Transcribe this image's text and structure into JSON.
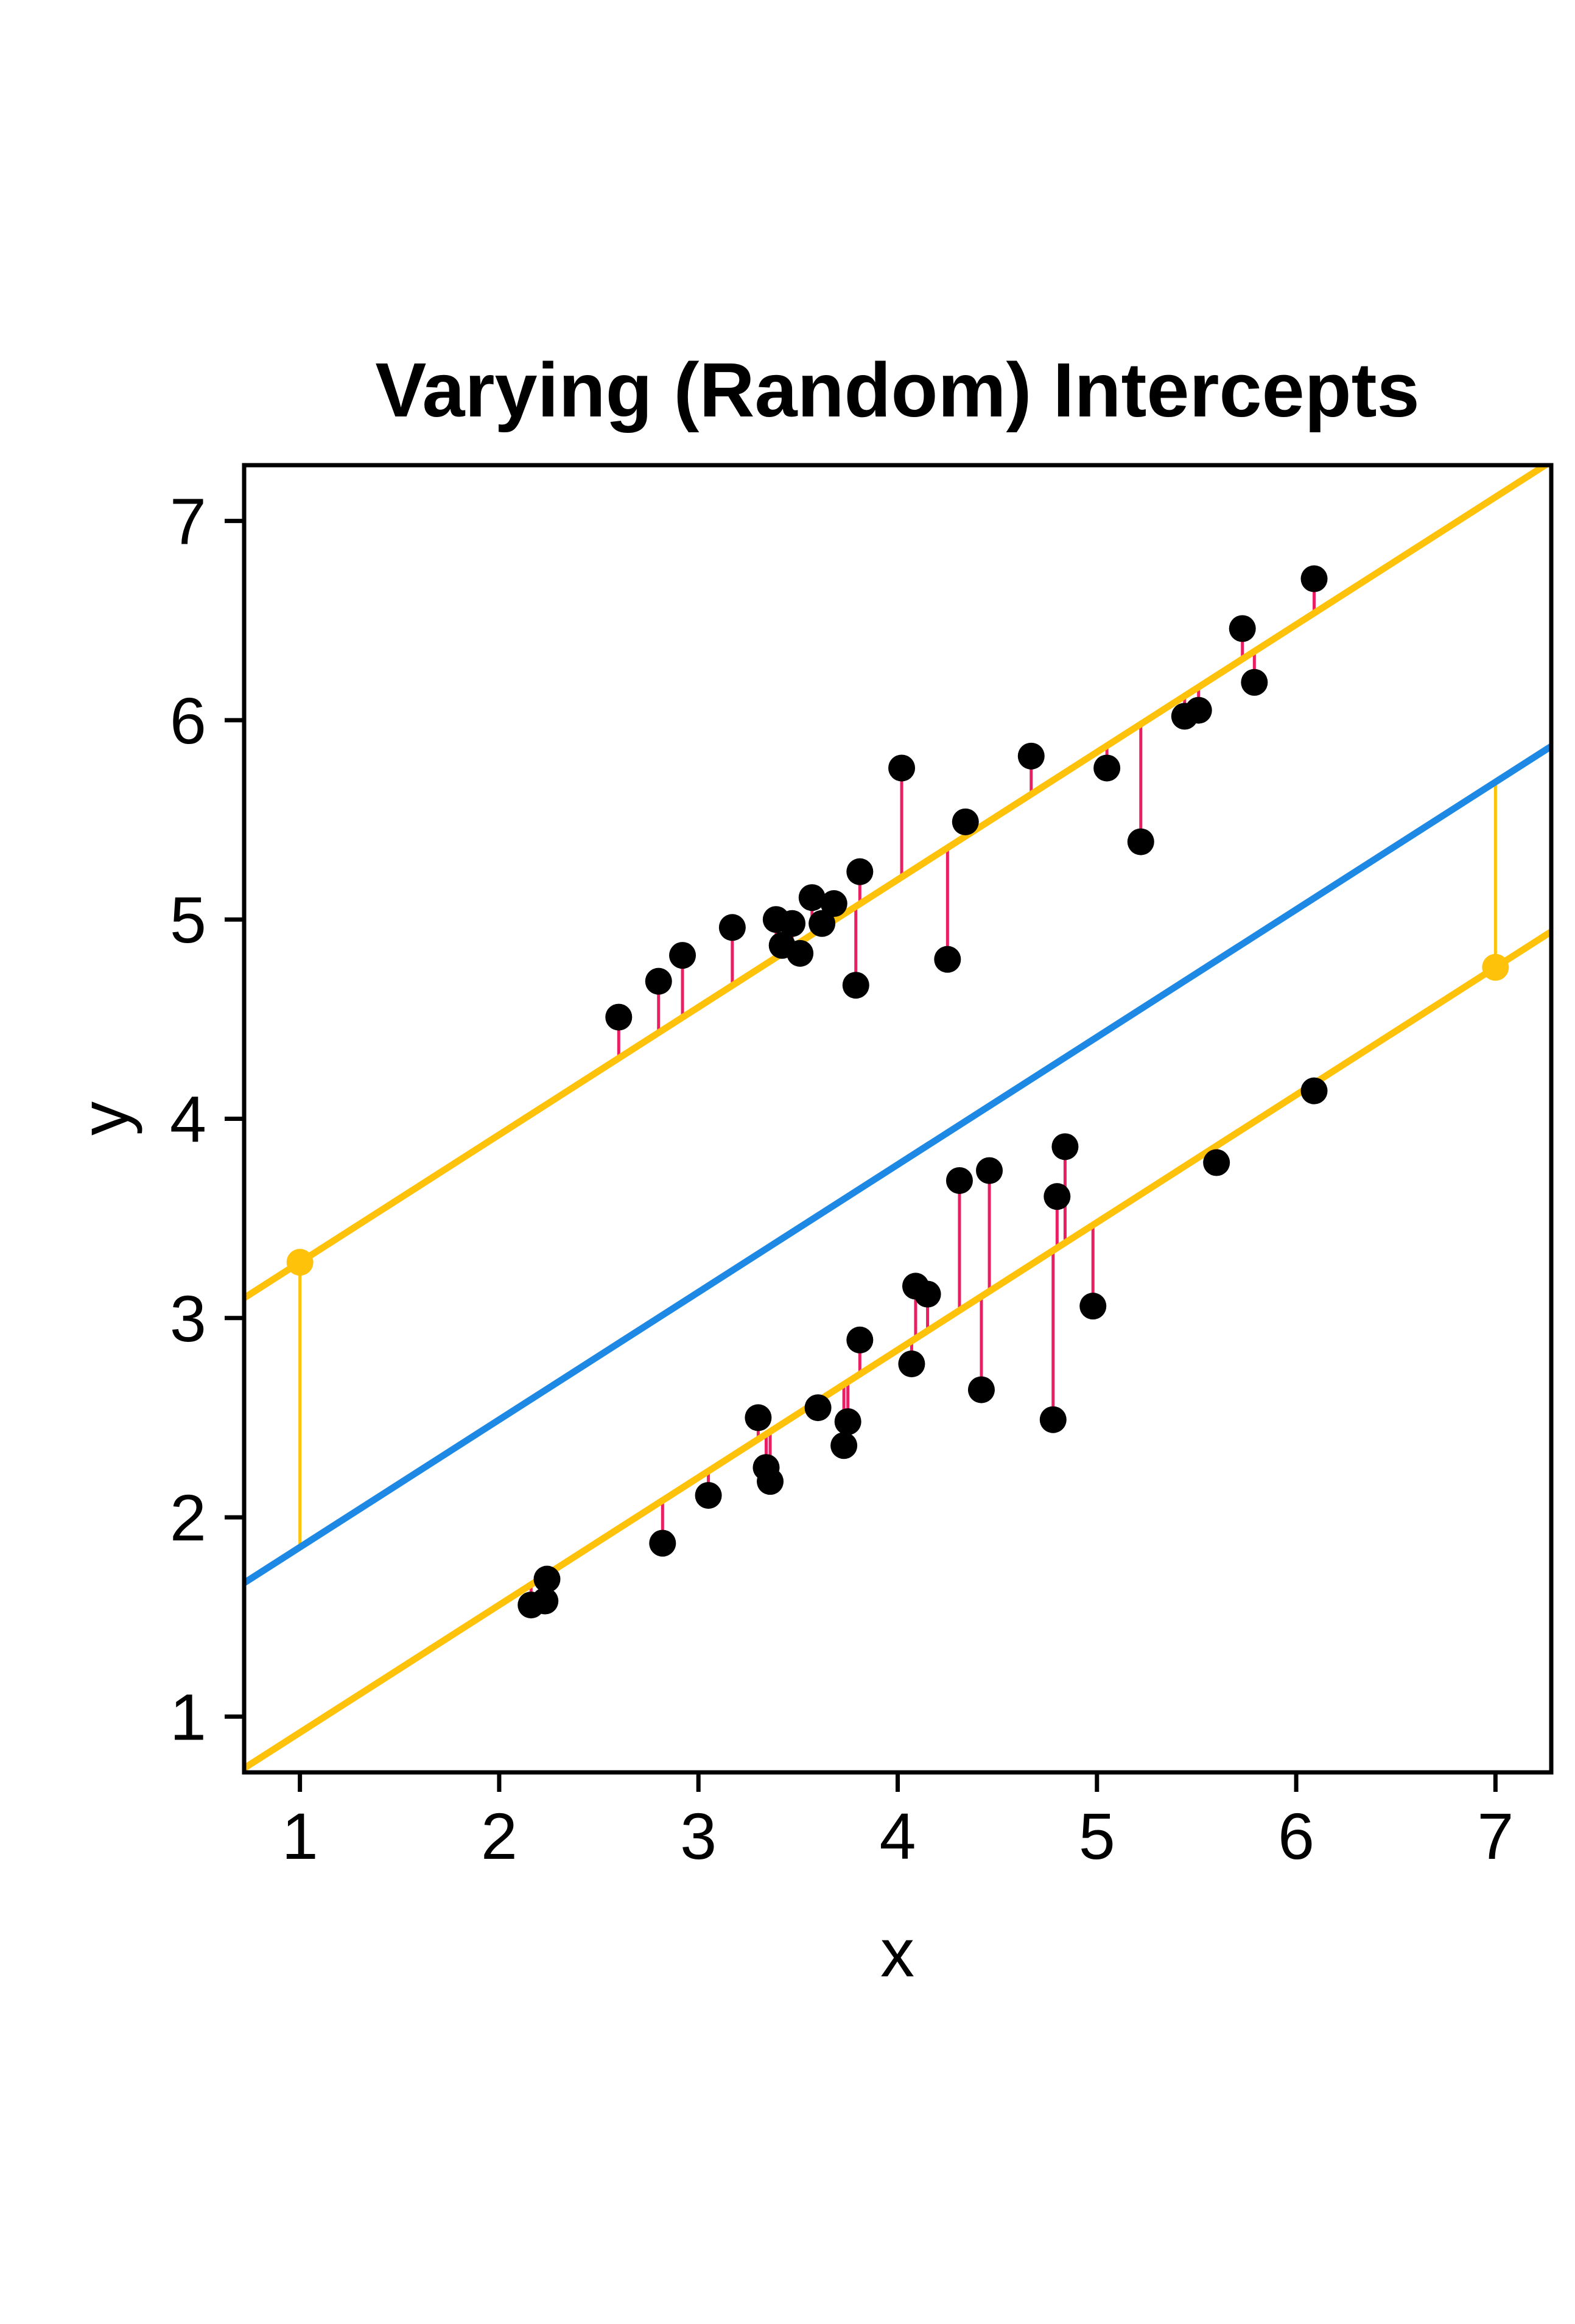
{
  "chart_data": {
    "type": "scatter",
    "title": "Varying (Random) Intercepts",
    "xlabel": "x",
    "ylabel": "y",
    "xlim": [
      0.72,
      7.28
    ],
    "ylim": [
      0.72,
      7.28
    ],
    "xticks": [
      1,
      2,
      3,
      4,
      5,
      6,
      7
    ],
    "yticks": [
      1,
      2,
      3,
      4,
      5,
      6,
      7
    ],
    "grid": false,
    "legend": "none",
    "colors": {
      "points": "#000000",
      "group_lines": "#FFC20A",
      "population_line": "#1E88E5",
      "residuals": "#E91E63",
      "intercept_offsets": "#FFC20A"
    },
    "population_line": {
      "intercept": 1.21,
      "slope": 0.64
    },
    "group_lines": [
      {
        "intercept": 2.64,
        "slope": 0.64
      },
      {
        "intercept": 0.28,
        "slope": 0.64
      }
    ],
    "intercept_markers": [
      {
        "x": 1,
        "y": 3.28,
        "group": 0
      },
      {
        "x": 7,
        "y": 4.76,
        "group": 1
      }
    ],
    "series": [
      {
        "group": 0,
        "points": [
          [
            2.6,
            4.51
          ],
          [
            2.8,
            4.69
          ],
          [
            2.92,
            4.82
          ],
          [
            3.17,
            4.96
          ],
          [
            3.39,
            5.0
          ],
          [
            3.42,
            4.87
          ],
          [
            3.47,
            4.98
          ],
          [
            3.51,
            4.83
          ],
          [
            3.57,
            5.11
          ],
          [
            3.62,
            4.98
          ],
          [
            3.68,
            5.08
          ],
          [
            3.79,
            4.67
          ],
          [
            3.81,
            5.24
          ],
          [
            4.02,
            5.76
          ],
          [
            4.25,
            4.8
          ],
          [
            4.34,
            5.49
          ],
          [
            4.67,
            5.82
          ],
          [
            5.05,
            5.76
          ],
          [
            5.22,
            5.39
          ],
          [
            5.44,
            6.02
          ],
          [
            5.51,
            6.05
          ],
          [
            5.73,
            6.46
          ],
          [
            5.79,
            6.19
          ],
          [
            6.09,
            6.71
          ]
        ]
      },
      {
        "group": 1,
        "points": [
          [
            2.16,
            1.56
          ],
          [
            2.23,
            1.58
          ],
          [
            2.24,
            1.69
          ],
          [
            2.82,
            1.87
          ],
          [
            3.05,
            2.11
          ],
          [
            3.3,
            2.5
          ],
          [
            3.34,
            2.25
          ],
          [
            3.36,
            2.18
          ],
          [
            3.6,
            2.55
          ],
          [
            3.73,
            2.36
          ],
          [
            3.75,
            2.48
          ],
          [
            3.81,
            2.89
          ],
          [
            4.07,
            2.77
          ],
          [
            4.09,
            3.16
          ],
          [
            4.15,
            3.12
          ],
          [
            4.31,
            3.69
          ],
          [
            4.42,
            2.64
          ],
          [
            4.46,
            3.74
          ],
          [
            4.78,
            2.49
          ],
          [
            4.8,
            3.61
          ],
          [
            4.84,
            3.86
          ],
          [
            4.98,
            3.06
          ],
          [
            5.6,
            3.78
          ],
          [
            6.09,
            4.14
          ]
        ]
      }
    ]
  }
}
